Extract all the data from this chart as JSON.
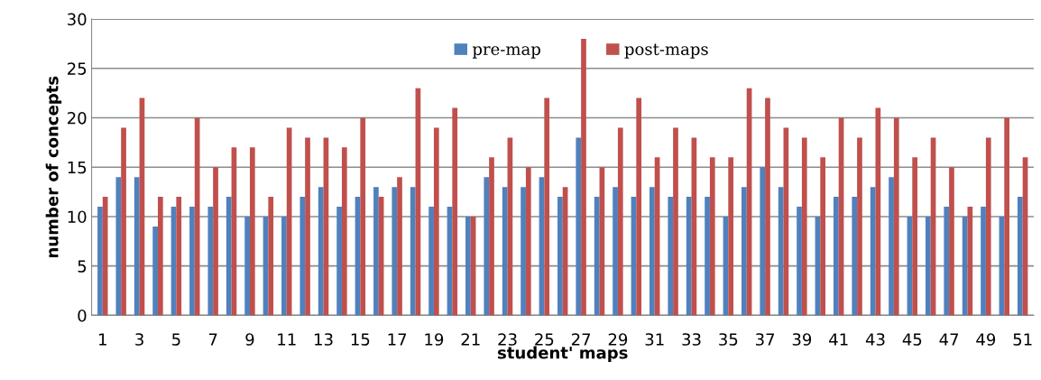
{
  "chart_data": {
    "type": "bar",
    "xlabel": "student' maps",
    "ylabel": "number of concepts",
    "categories": [
      "1",
      null,
      "3",
      null,
      "5",
      null,
      "7",
      null,
      "9",
      null,
      "11",
      null,
      "13",
      null,
      "15",
      null,
      "17",
      null,
      "19",
      null,
      "21",
      null,
      "23",
      null,
      "25",
      null,
      "27",
      null,
      "29",
      null,
      "31",
      null,
      "33",
      null,
      "35",
      null,
      "37",
      null,
      "39",
      null,
      "41",
      null,
      "43",
      null,
      "45",
      null,
      "47",
      null,
      "49",
      null,
      "51"
    ],
    "series": [
      {
        "name": "pre-map",
        "color": "#4f81bd",
        "values": [
          11,
          14,
          14,
          9,
          11,
          11,
          11,
          12,
          10,
          10,
          10,
          12,
          13,
          11,
          12,
          13,
          13,
          13,
          11,
          11,
          10,
          14,
          13,
          13,
          14,
          12,
          18,
          12,
          13,
          12,
          13,
          12,
          12,
          12,
          10,
          13,
          15,
          13,
          11,
          10,
          12,
          12,
          13,
          14,
          10,
          10,
          11,
          10,
          11,
          10,
          12
        ]
      },
      {
        "name": "post-maps",
        "color": "#c0504d",
        "values": [
          12,
          19,
          22,
          12,
          12,
          20,
          15,
          17,
          17,
          12,
          19,
          18,
          18,
          17,
          20,
          12,
          14,
          23,
          19,
          21,
          10,
          16,
          18,
          15,
          22,
          13,
          28,
          15,
          19,
          22,
          16,
          19,
          18,
          16,
          16,
          23,
          22,
          19,
          18,
          16,
          20,
          18,
          21,
          20,
          16,
          18,
          15,
          11,
          18,
          20,
          16
        ]
      }
    ],
    "ylim": [
      0,
      30
    ],
    "yticks": [
      0,
      5,
      10,
      15,
      20,
      25,
      30
    ],
    "grid": "y",
    "legend": "top"
  }
}
